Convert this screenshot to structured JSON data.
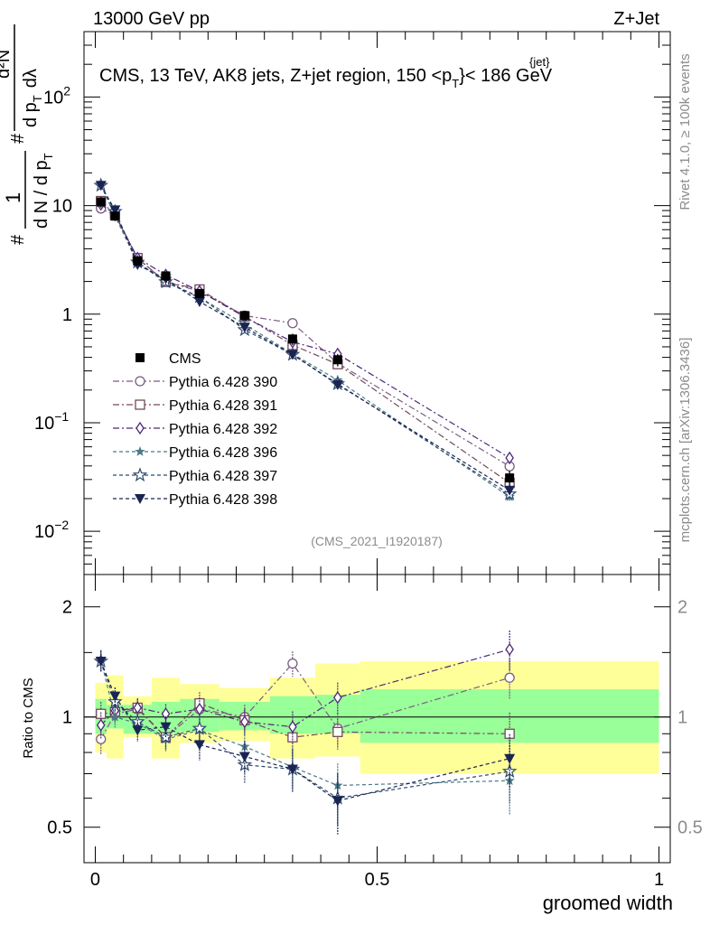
{
  "header": {
    "left": "13000 GeV pp",
    "right": "Z+Jet"
  },
  "main": {
    "title": "CMS, 13 TeV, AK8 jets, Z+jet region, 150 <p",
    "title_sup": "{jet}",
    "title_sub": "T",
    "title_end": "}< 186 GeV",
    "analysis_tag": "(CMS_2021_I1920187)",
    "ylabel": {
      "num1": "#",
      "frac1_num": "1",
      "frac1_den": "d N / d p",
      "den_sub": "T",
      "num2": "#",
      "frac2_num": "d²N",
      "frac2_den": "d p",
      "frac2_den_sub": "T",
      "frac2_den_end": "dλ"
    }
  },
  "ratio": {
    "ylabel": "Ratio to CMS"
  },
  "xaxis": {
    "label": "groomed width"
  },
  "side": {
    "rivet": "Rivet 4.1.0, ≥ 100k events",
    "mcplots": "mcplots.cern.ch [arXiv:1306.3436]"
  },
  "ticks": {
    "main_y": [
      {
        "v": 100,
        "label": "10",
        "sup": "2"
      },
      {
        "v": 10,
        "label": "10",
        "sup": ""
      },
      {
        "v": 1,
        "label": "1",
        "sup": ""
      },
      {
        "v": 0.1,
        "label": "10",
        "sup": "−1"
      },
      {
        "v": 0.01,
        "label": "10",
        "sup": "−2"
      }
    ],
    "ratio_y": [
      {
        "v": 2,
        "label": "2"
      },
      {
        "v": 1,
        "label": "1"
      },
      {
        "v": 0.5,
        "label": "0.5"
      }
    ],
    "x": [
      {
        "v": 0,
        "label": "0"
      },
      {
        "v": 0.5,
        "label": "0.5"
      },
      {
        "v": 1,
        "label": "1"
      }
    ]
  },
  "chart_data": {
    "type": "line",
    "title": "CMS, 13 TeV, AK8 jets, Z+jet region, 150 < pT jet < 186 GeV",
    "xlabel": "groomed width",
    "ylabel": "1/N dN/dλ",
    "xlim": [
      -0.02,
      1.02
    ],
    "ylim": [
      0.004,
      400
    ],
    "yscale": "log",
    "ratio_ylim": [
      0.4,
      2.45
    ],
    "ratio_yscale": "log",
    "x": [
      0.01,
      0.035,
      0.075,
      0.125,
      0.185,
      0.265,
      0.35,
      0.43,
      0.735
    ],
    "bins": [
      [
        0,
        0.02
      ],
      [
        0.02,
        0.05
      ],
      [
        0.05,
        0.1
      ],
      [
        0.1,
        0.15
      ],
      [
        0.15,
        0.22
      ],
      [
        0.22,
        0.31
      ],
      [
        0.31,
        0.39
      ],
      [
        0.39,
        0.47
      ],
      [
        0.47,
        1.0
      ]
    ],
    "data": {
      "name": "CMS",
      "color": "#000000",
      "values": [
        10.8,
        8.0,
        3.1,
        2.25,
        1.55,
        0.97,
        0.59,
        0.38,
        0.031
      ],
      "errors": [
        1.2,
        0.8,
        0.3,
        0.2,
        0.15,
        0.1,
        0.07,
        0.05,
        0.005
      ]
    },
    "bands": {
      "stat_color": "#99ff99",
      "syst_color": "#ffff99",
      "inner_lo": [
        0.9,
        0.93,
        0.9,
        0.9,
        0.91,
        0.92,
        0.9,
        0.9,
        0.85
      ],
      "inner_hi": [
        1.12,
        1.08,
        1.08,
        1.1,
        1.12,
        1.1,
        1.14,
        1.15,
        1.19
      ],
      "outer_lo": [
        0.8,
        0.77,
        0.88,
        0.77,
        0.85,
        0.86,
        0.77,
        0.78,
        0.7
      ],
      "outer_hi": [
        1.24,
        1.3,
        1.14,
        1.28,
        1.23,
        1.2,
        1.28,
        1.4,
        1.42
      ]
    },
    "series": [
      {
        "name": "Pythia 6.428 390",
        "color": "#7b5c83",
        "marker": "circle",
        "dash": "7,3,2,3",
        "ratios": [
          0.87,
          1.02,
          1.05,
          0.88,
          1.05,
          1.0,
          1.4,
          0.93,
          1.28
        ],
        "ratio_err": [
          0.05,
          0.04,
          0.04,
          0.04,
          0.05,
          0.05,
          0.07,
          0.06,
          0.1
        ]
      },
      {
        "name": "Pythia 6.428 391",
        "color": "#714a5b",
        "marker": "square",
        "dash": "7,3,2,3",
        "ratios": [
          1.02,
          1.03,
          1.06,
          0.88,
          1.09,
          0.98,
          0.88,
          0.91,
          0.9
        ],
        "ratio_err": [
          0.05,
          0.04,
          0.04,
          0.04,
          0.05,
          0.05,
          0.06,
          0.06,
          0.08
        ]
      },
      {
        "name": "Pythia 6.428 392",
        "color": "#4e2878",
        "marker": "diamond",
        "dash": "7,3,2,3",
        "ratios": [
          0.95,
          1.04,
          1.06,
          1.02,
          1.05,
          0.97,
          0.94,
          1.13,
          1.53
        ],
        "ratio_err": [
          0.05,
          0.04,
          0.04,
          0.04,
          0.05,
          0.05,
          0.06,
          0.07,
          0.12
        ]
      },
      {
        "name": "Pythia 6.428 396",
        "color": "#4a7a86",
        "marker": "star",
        "dash": "4,3",
        "ratios": [
          1.43,
          1.0,
          0.96,
          0.87,
          0.92,
          0.83,
          0.73,
          0.65,
          0.67
        ],
        "ratio_err": [
          0.06,
          0.04,
          0.04,
          0.04,
          0.05,
          0.05,
          0.06,
          0.06,
          0.08
        ]
      },
      {
        "name": "Pythia 6.428 397",
        "color": "#2e4a6e",
        "marker": "star-open",
        "dash": "4,3",
        "ratios": [
          1.42,
          1.1,
          0.97,
          0.88,
          0.93,
          0.74,
          0.72,
          0.6,
          0.71
        ],
        "ratio_err": [
          0.06,
          0.04,
          0.04,
          0.04,
          0.05,
          0.05,
          0.06,
          0.06,
          0.08
        ]
      },
      {
        "name": "Pythia 6.428 398",
        "color": "#1a2453",
        "marker": "tri-down",
        "dash": "4,3",
        "ratios": [
          1.42,
          1.14,
          0.92,
          0.94,
          0.84,
          0.78,
          0.72,
          0.59,
          0.77
        ],
        "ratio_err": [
          0.06,
          0.04,
          0.04,
          0.04,
          0.05,
          0.05,
          0.06,
          0.07,
          0.08
        ]
      }
    ]
  }
}
